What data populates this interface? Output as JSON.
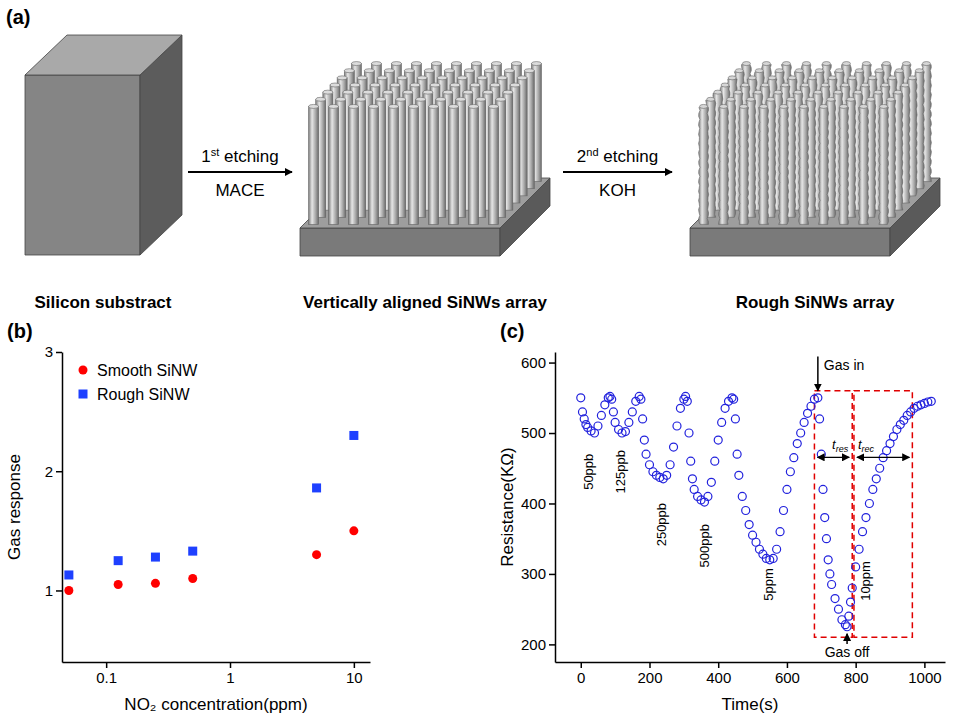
{
  "panel_a": {
    "label": "(a)",
    "captions": [
      "Silicon substract",
      "Vertically aligned SiNWs array",
      "Rough SiNWs array"
    ],
    "steps": [
      {
        "text": "1st etching",
        "method": "MACE"
      },
      {
        "text": "2nd etching",
        "method": "KOH"
      }
    ]
  },
  "chart_data": [
    {
      "type": "scatter",
      "panel": "(b)",
      "x_label": "NO₂ concentration(ppm)",
      "y_label": "Gas response",
      "log": "x",
      "xlim": [
        0.044,
        13.5
      ],
      "xticks": [
        0.1,
        1,
        10
      ],
      "ylim": [
        0.4,
        3
      ],
      "yticks": [
        1,
        2,
        3
      ],
      "legend": "top-left",
      "x": [
        0.05,
        0.125,
        0.25,
        0.5,
        5,
        10
      ],
      "series": [
        {
          "name": "Smooth SiNW",
          "color": "#ff0000",
          "marker": "circle",
          "values": [
            1.0,
            1.05,
            1.06,
            1.1,
            1.3,
            1.5
          ]
        },
        {
          "name": "Rough SiNW",
          "color": "#1e40ff",
          "marker": "square",
          "values": [
            1.13,
            1.25,
            1.28,
            1.33,
            1.86,
            2.3
          ]
        }
      ]
    },
    {
      "type": "scatter",
      "panel": "(c)",
      "x_label": "Time(s)",
      "y_label": "Resistance(KΩ)",
      "xlim": [
        -75,
        1060
      ],
      "xticks": [
        0,
        200,
        400,
        600,
        800,
        1000
      ],
      "ylim": [
        175,
        615
      ],
      "yticks": [
        200,
        300,
        400,
        500,
        600
      ],
      "x": [
        0,
        5,
        10,
        15,
        20,
        30,
        40,
        50,
        60,
        70,
        80,
        85,
        90,
        95,
        100,
        110,
        120,
        130,
        140,
        150,
        160,
        170,
        175,
        180,
        185,
        190,
        200,
        210,
        220,
        230,
        240,
        250,
        260,
        270,
        280,
        290,
        300,
        305,
        310,
        315,
        320,
        325,
        330,
        340,
        350,
        360,
        370,
        380,
        390,
        400,
        410,
        420,
        430,
        440,
        445,
        450,
        455,
        460,
        470,
        480,
        490,
        500,
        510,
        520,
        530,
        540,
        550,
        560,
        570,
        580,
        590,
        600,
        610,
        620,
        630,
        640,
        650,
        660,
        670,
        680,
        690,
        695,
        700,
        705,
        710,
        715,
        720,
        725,
        730,
        740,
        750,
        760,
        770,
        775,
        780,
        785,
        790,
        800,
        810,
        820,
        830,
        840,
        850,
        860,
        870,
        880,
        890,
        900,
        910,
        920,
        930,
        940,
        950,
        960,
        970,
        980,
        990,
        1000,
        1010,
        1020
      ],
      "series": [
        {
          "color": "#2222dd",
          "marker": "open_circle",
          "values": [
            550,
            530,
            520,
            512,
            508,
            503,
            500,
            510,
            525,
            540,
            550,
            552,
            548,
            530,
            515,
            505,
            500,
            502,
            515,
            530,
            545,
            552,
            548,
            520,
            490,
            470,
            455,
            445,
            440,
            437,
            435,
            440,
            455,
            480,
            510,
            535,
            548,
            552,
            545,
            500,
            460,
            435,
            420,
            410,
            405,
            402,
            410,
            430,
            460,
            490,
            515,
            535,
            545,
            550,
            548,
            520,
            470,
            440,
            410,
            390,
            370,
            355,
            345,
            335,
            328,
            322,
            320,
            322,
            335,
            360,
            390,
            420,
            445,
            465,
            485,
            500,
            515,
            528,
            538,
            548,
            550,
            520,
            470,
            420,
            380,
            350,
            320,
            300,
            285,
            265,
            250,
            235,
            228,
            225,
            240,
            260,
            280,
            310,
            335,
            360,
            380,
            400,
            420,
            435,
            450,
            465,
            475,
            485,
            495,
            505,
            512,
            518,
            525,
            530,
            535,
            538,
            540,
            542,
            544,
            545
          ]
        }
      ],
      "annotations": [
        {
          "text": "50ppb",
          "x": 22,
          "y": 445
        },
        {
          "text": "125ppb",
          "x": 115,
          "y": 445
        },
        {
          "text": "250ppb",
          "x": 235,
          "y": 370
        },
        {
          "text": "500ppb",
          "x": 360,
          "y": 340
        },
        {
          "text": "5ppm",
          "x": 545,
          "y": 285
        },
        {
          "text": "10ppm",
          "x": 830,
          "y": 290
        }
      ],
      "events": [
        {
          "text": "Gas in",
          "x": 690,
          "y": 590
        },
        {
          "text": "Gas off",
          "x": 775,
          "y": 182
        }
      ],
      "regions": [
        {
          "label": [
            "t",
            "res"
          ],
          "x": [
            680,
            790
          ],
          "y": [
            210,
            560
          ]
        },
        {
          "label": [
            "t",
            "rec"
          ],
          "x": [
            795,
            965
          ],
          "y": [
            210,
            560
          ]
        }
      ]
    }
  ]
}
